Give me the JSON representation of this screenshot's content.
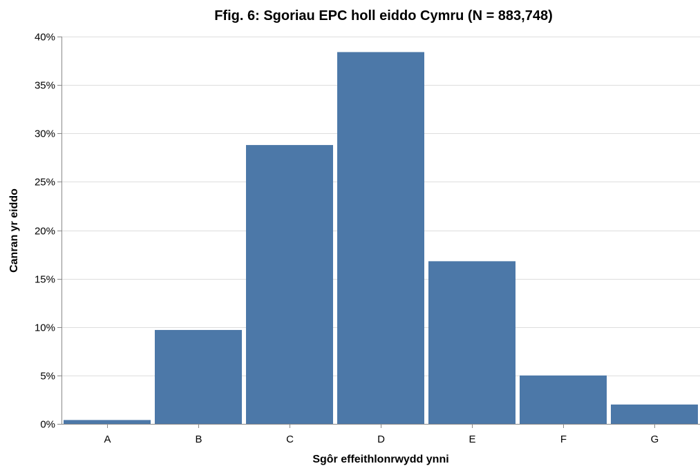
{
  "chart_data": {
    "type": "bar",
    "title": "Ffig. 6: Sgoriau EPC holl eiddo Cymru (N = 883,748)",
    "xlabel": "Sgôr effeithlonrwydd ynni",
    "ylabel": "Canran yr eiddo",
    "categories": [
      "A",
      "B",
      "C",
      "D",
      "E",
      "F",
      "G"
    ],
    "values": [
      0.4,
      9.7,
      28.8,
      38.4,
      16.8,
      5.0,
      2.0
    ],
    "ylim": [
      0,
      40
    ],
    "yticks": [
      0,
      5,
      10,
      15,
      20,
      25,
      30,
      35,
      40
    ],
    "ytick_labels": [
      "0%",
      "5%",
      "10%",
      "15%",
      "20%",
      "25%",
      "30%",
      "35%",
      "40%"
    ],
    "grid": true,
    "legend": "none",
    "bar_color": "#4c78a8"
  }
}
